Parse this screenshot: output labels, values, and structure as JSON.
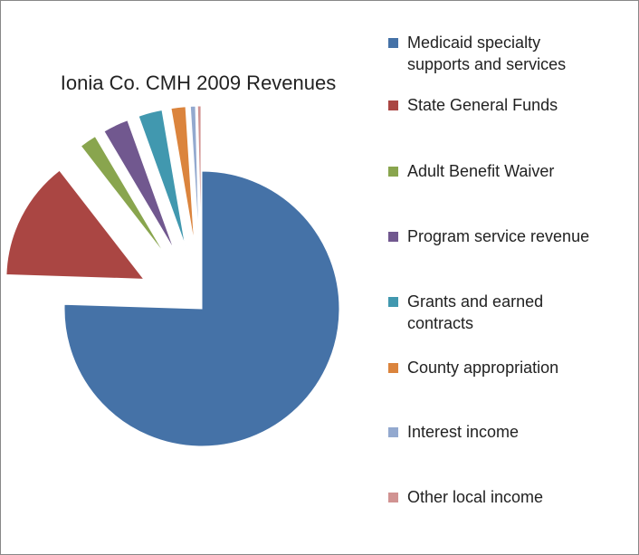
{
  "chart_data": {
    "type": "pie",
    "title": "Ionia Co. CMH 2009 Revenues",
    "categories": [
      "Medicaid specialty supports and services",
      "State General Funds",
      "Adult Benefit Waiver",
      "Program service revenue",
      "Grants and earned contracts",
      "County appropriation",
      "Interest income",
      "Other local income"
    ],
    "values": [
      75.5,
      14,
      2,
      3,
      2.8,
      1.7,
      0.6,
      0.4
    ],
    "colors": [
      "#4572a7",
      "#aa4643",
      "#89a54e",
      "#71588f",
      "#4198af",
      "#db843d",
      "#93a9cf",
      "#d19392"
    ],
    "legend": "right"
  }
}
